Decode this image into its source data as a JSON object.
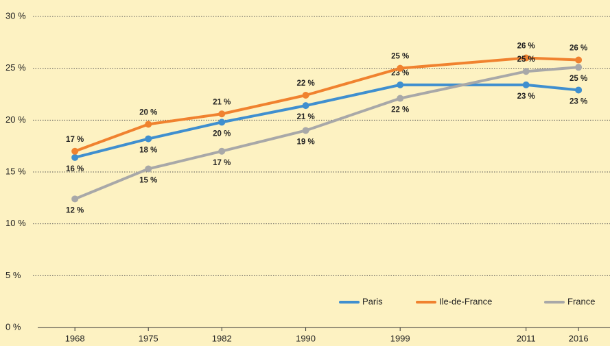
{
  "chart_data": {
    "type": "line",
    "x": [
      1968,
      1975,
      1982,
      1990,
      1999,
      2011,
      2016
    ],
    "xlim": [
      1964,
      2019
    ],
    "xticks": [
      1968,
      1975,
      1982,
      1990,
      1999,
      2011,
      2016
    ],
    "ylim": [
      0,
      30
    ],
    "yticks": [
      {
        "value": 0,
        "label": "0 %"
      },
      {
        "value": 5,
        "label": "5 %"
      },
      {
        "value": 10,
        "label": "10 %"
      },
      {
        "value": 15,
        "label": "15 %"
      },
      {
        "value": 20,
        "label": "20 %"
      },
      {
        "value": 25,
        "label": "25 %"
      },
      {
        "value": 30,
        "label": "30 %"
      }
    ],
    "grid": true,
    "legend": "lower right",
    "series": [
      {
        "name": "Paris",
        "color": "#3f8fcf",
        "values": [
          16.4,
          18.2,
          19.8,
          21.4,
          23.4,
          23.4,
          22.9
        ],
        "value_labels": [
          "16 %",
          "18 %",
          "20 %",
          "21 %",
          "23 %",
          "23 %",
          "23 %"
        ]
      },
      {
        "name": "Ile-de-France",
        "color": "#f0822f",
        "values": [
          17.0,
          19.6,
          20.6,
          22.4,
          25.0,
          26.0,
          25.8
        ],
        "value_labels": [
          "17 %",
          "20 %",
          "21 %",
          "22 %",
          "25 %",
          "26 %",
          "26 %"
        ]
      },
      {
        "name": "France",
        "color": "#a8a8a8",
        "values": [
          12.4,
          15.3,
          17.0,
          19.0,
          22.1,
          24.7,
          25.1
        ],
        "value_labels": [
          "12 %",
          "15 %",
          "17 %",
          "19 %",
          "22 %",
          "25 %",
          "25 %"
        ]
      }
    ]
  }
}
